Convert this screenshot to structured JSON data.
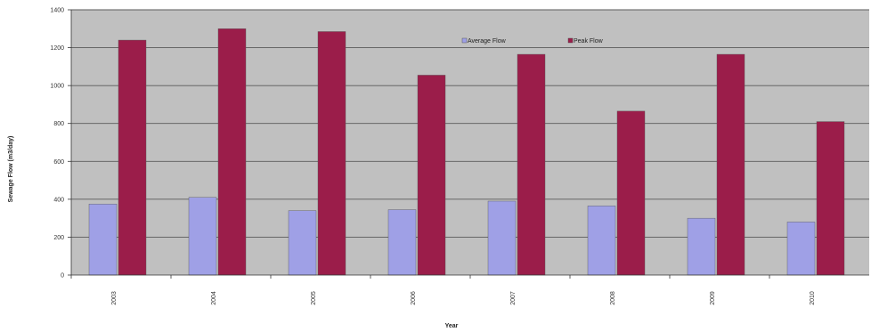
{
  "chart_data": {
    "type": "bar",
    "title": "",
    "xlabel": "Year",
    "ylabel": "Sewage Flow (m3/day)",
    "categories": [
      "2003",
      "2004",
      "2005",
      "2006",
      "2007",
      "2008",
      "2009",
      "2010"
    ],
    "series": [
      {
        "name": "Average Flow",
        "color": "#9fa0e6",
        "values": [
          375,
          410,
          340,
          345,
          390,
          365,
          300,
          280
        ]
      },
      {
        "name": "Peak Flow",
        "color": "#9b1d4a",
        "values": [
          1240,
          1300,
          1285,
          1055,
          1165,
          865,
          1165,
          810
        ]
      }
    ],
    "ylim": [
      0,
      1400
    ],
    "yticks": [
      0,
      200,
      400,
      600,
      800,
      1000,
      1200,
      1400
    ],
    "grid": true,
    "legend_position": "top",
    "plot_background": "#c0c0c0"
  }
}
